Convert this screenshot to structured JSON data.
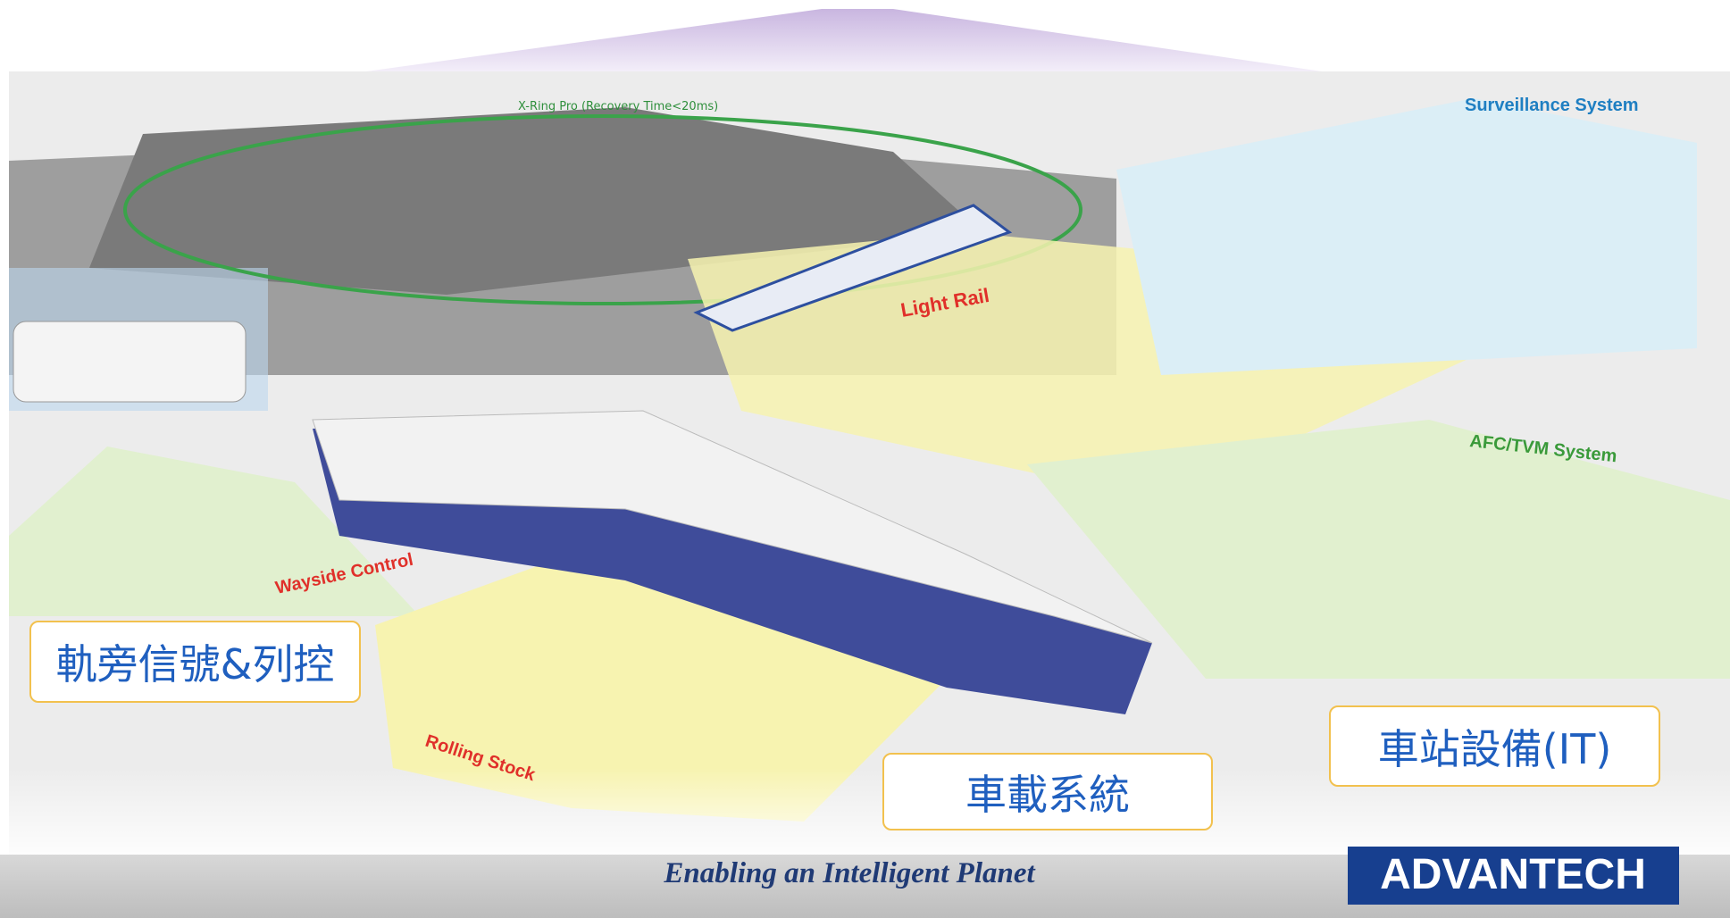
{
  "scene": {
    "ring_label": "X-Ring Pro (Recovery Time<20ms)",
    "zones": [
      "Surveillance System",
      "Light Rail",
      "AFC/TVM System",
      "Wayside Control",
      "Rolling Stock"
    ]
  },
  "callouts": [
    "軌旁信號&列控",
    "車載系統",
    "車站設備(IT)"
  ],
  "footer": {
    "slogan": "Enabling an Intelligent Planet",
    "logo": "ADVANTECH"
  }
}
